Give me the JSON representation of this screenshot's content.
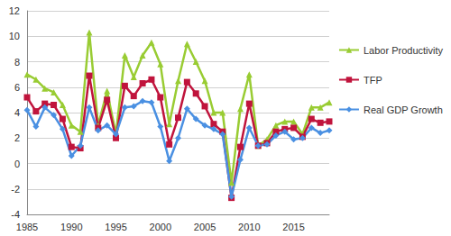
{
  "chart_data": {
    "type": "line",
    "categories": [
      "1985",
      null,
      null,
      null,
      null,
      "1990",
      null,
      null,
      null,
      null,
      "1995",
      null,
      null,
      null,
      null,
      "2000",
      null,
      null,
      null,
      null,
      "2005",
      null,
      null,
      null,
      null,
      "2010",
      null,
      null,
      null,
      null,
      "2015",
      null,
      null,
      null,
      null
    ],
    "series": [
      {
        "name": "Labor Productivity",
        "color": "#99cc33",
        "marker": "triangle",
        "values": [
          7.0,
          6.6,
          5.9,
          5.6,
          4.6,
          3.0,
          2.5,
          10.3,
          3.0,
          5.7,
          2.3,
          8.5,
          6.8,
          8.5,
          9.5,
          7.8,
          3.1,
          6.5,
          9.4,
          8.0,
          6.5,
          4.0,
          4.0,
          -1.5,
          4.3,
          7.0,
          1.4,
          1.9,
          3.0,
          3.3,
          3.3,
          2.3,
          4.4,
          4.4,
          4.8
        ]
      },
      {
        "name": "TFP",
        "color": "#c0143c",
        "marker": "square",
        "values": [
          5.2,
          4.1,
          4.7,
          4.6,
          3.5,
          1.3,
          1.2,
          6.9,
          2.8,
          5.0,
          2.0,
          6.1,
          5.3,
          6.3,
          6.6,
          5.2,
          1.5,
          3.6,
          6.4,
          5.5,
          4.5,
          3.1,
          2.5,
          -2.7,
          1.3,
          4.7,
          1.4,
          1.6,
          2.5,
          2.7,
          2.8,
          2.1,
          3.5,
          3.2,
          3.3
        ]
      },
      {
        "name": "Real GDP Growth",
        "color": "#4a90e2",
        "marker": "diamond",
        "values": [
          4.2,
          2.9,
          4.4,
          3.8,
          2.7,
          0.6,
          1.4,
          4.4,
          2.6,
          3.0,
          2.3,
          4.4,
          4.5,
          4.9,
          4.8,
          2.9,
          0.2,
          2.0,
          4.3,
          3.5,
          3.0,
          2.7,
          2.3,
          -2.6,
          0.3,
          2.8,
          1.4,
          1.5,
          2.2,
          2.5,
          1.9,
          2.0,
          2.8,
          2.4,
          2.6
        ]
      }
    ],
    "ylim": [
      -4,
      12
    ],
    "yticks": [
      -4,
      -2,
      0,
      2,
      4,
      6,
      8,
      10,
      12
    ],
    "grid": true,
    "legend": "right"
  }
}
